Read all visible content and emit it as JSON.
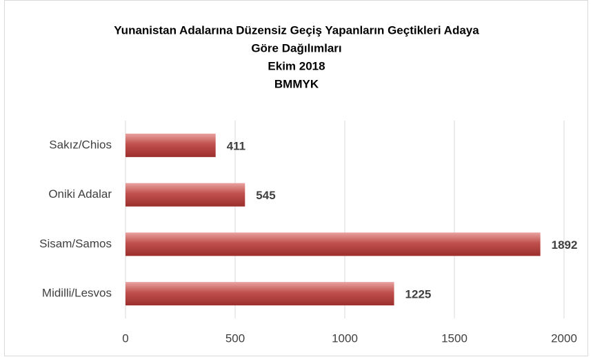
{
  "chart_data": {
    "type": "bar",
    "orientation": "horizontal",
    "title": [
      "Yunanistan Adalarına Düzensiz Geçiş Yapanların Geçtikleri Adaya",
      "Göre Dağılımları",
      "Ekim 2018",
      "BMMYK"
    ],
    "categories": [
      "Sakız/Chios",
      "Oniki Adalar",
      "Sisam/Samos",
      "Midilli/Lesvos"
    ],
    "values": [
      411,
      545,
      1892,
      1225
    ],
    "color": "#c0504d",
    "xlim": [
      0,
      2000
    ],
    "xticks": [
      0,
      500,
      1000,
      1500,
      2000
    ],
    "grid": true
  }
}
